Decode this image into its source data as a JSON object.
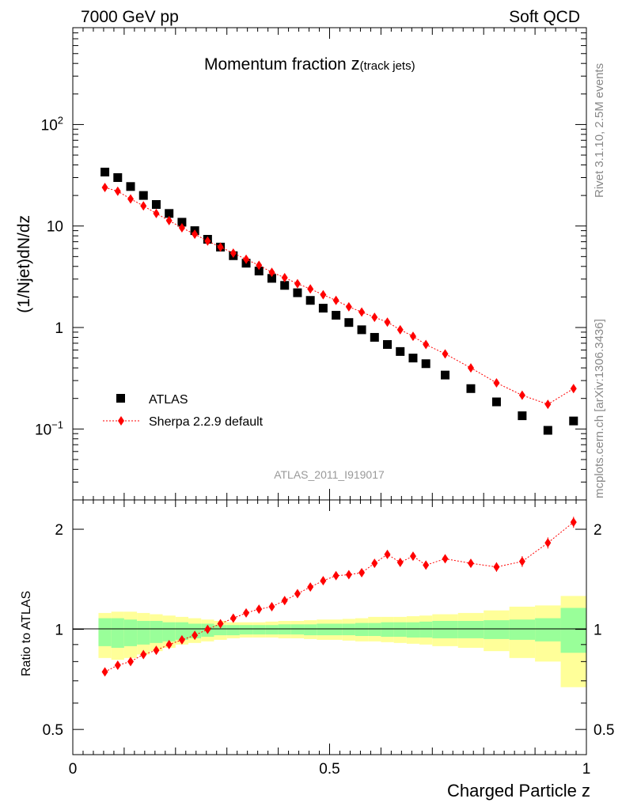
{
  "header": {
    "left": "7000 GeV pp",
    "right": "Soft QCD"
  },
  "side_labels": {
    "top": "Rivet 3.1.10,  2.5M events",
    "bottom": "mcplots.cern.ch [arXiv:1306.3436]"
  },
  "chart_data": [
    {
      "type": "scatter",
      "title_main": "Momentum fraction ",
      "title_z": "z",
      "title_sub": "(track jets)",
      "ylabel": "(1/Njet)dN/dz",
      "yscale": "log",
      "ylim": [
        0.02,
        900
      ],
      "xlim": [
        0,
        1
      ],
      "yticks": [
        {
          "value": 100,
          "base": "10",
          "exp": "2"
        },
        {
          "value": 10,
          "text": "10"
        },
        {
          "value": 1,
          "text": "1"
        },
        {
          "value": 0.1,
          "base": "10",
          "exp": "−1"
        }
      ],
      "watermark": "ATLAS_2011_I919017",
      "legend_position": "bottom-left",
      "series": [
        {
          "name": "ATLAS",
          "marker": "square",
          "color": "#000000",
          "x": [
            0.0625,
            0.0875,
            0.1125,
            0.1375,
            0.1625,
            0.1875,
            0.2125,
            0.2375,
            0.2625,
            0.2875,
            0.3125,
            0.3375,
            0.3625,
            0.3875,
            0.4125,
            0.4375,
            0.4625,
            0.4875,
            0.5125,
            0.5375,
            0.5625,
            0.5875,
            0.6125,
            0.6375,
            0.6625,
            0.6875,
            0.725,
            0.775,
            0.825,
            0.875,
            0.925,
            0.975
          ],
          "y": [
            34,
            30,
            24.5,
            20,
            16.3,
            13.3,
            10.9,
            9.0,
            7.4,
            6.2,
            5.1,
            4.3,
            3.6,
            3.05,
            2.6,
            2.2,
            1.85,
            1.55,
            1.32,
            1.12,
            0.95,
            0.8,
            0.68,
            0.58,
            0.5,
            0.44,
            0.34,
            0.25,
            0.185,
            0.135,
            0.097,
            0.12
          ]
        },
        {
          "name": "Sherpa 2.2.9 default",
          "marker": "diamond",
          "color": "#ff0000",
          "x": [
            0.0625,
            0.0875,
            0.1125,
            0.1375,
            0.1625,
            0.1875,
            0.2125,
            0.2375,
            0.2625,
            0.2875,
            0.3125,
            0.3375,
            0.3625,
            0.3875,
            0.4125,
            0.4375,
            0.4625,
            0.4875,
            0.5125,
            0.5375,
            0.5625,
            0.5875,
            0.6125,
            0.6375,
            0.6625,
            0.6875,
            0.725,
            0.775,
            0.825,
            0.875,
            0.925,
            0.975
          ],
          "y": [
            24,
            22,
            18.5,
            15.8,
            13.3,
            11.3,
            9.6,
            8.3,
            7.1,
            6.2,
            5.4,
            4.7,
            4.1,
            3.5,
            3.1,
            2.7,
            2.4,
            2.1,
            1.85,
            1.6,
            1.42,
            1.26,
            1.13,
            0.95,
            0.82,
            0.68,
            0.55,
            0.4,
            0.285,
            0.215,
            0.175,
            0.25
          ]
        }
      ]
    },
    {
      "type": "scatter",
      "ylabel": "Ratio to ATLAS",
      "xlabel": "Charged Particle z",
      "yscale": "log",
      "ylim": [
        0.42,
        2.45
      ],
      "xlim": [
        0,
        1
      ],
      "yticks": [
        {
          "value": 2,
          "text": "2"
        },
        {
          "value": 1,
          "text": "1"
        },
        {
          "value": 0.5,
          "text": "0.5"
        }
      ],
      "xticks": [
        {
          "value": 0,
          "text": "0"
        },
        {
          "value": 0.5,
          "text": "0.5"
        },
        {
          "value": 1,
          "text": "1"
        }
      ],
      "bands": {
        "inner_color": "#99ff99",
        "outer_color": "#ffff99",
        "edges": [
          0.05,
          0.075,
          0.1,
          0.125,
          0.15,
          0.175,
          0.2,
          0.225,
          0.25,
          0.275,
          0.3,
          0.325,
          0.35,
          0.375,
          0.4,
          0.425,
          0.45,
          0.475,
          0.5,
          0.525,
          0.55,
          0.575,
          0.6,
          0.625,
          0.65,
          0.675,
          0.7,
          0.75,
          0.8,
          0.85,
          0.9,
          0.95,
          1.0
        ],
        "inner": [
          [
            0.89,
            1.08
          ],
          [
            0.88,
            1.08
          ],
          [
            0.89,
            1.07
          ],
          [
            0.9,
            1.06
          ],
          [
            0.91,
            1.06
          ],
          [
            0.92,
            1.05
          ],
          [
            0.93,
            1.05
          ],
          [
            0.94,
            1.04
          ],
          [
            0.95,
            1.04
          ],
          [
            0.96,
            1.03
          ],
          [
            0.96,
            1.03
          ],
          [
            0.965,
            1.03
          ],
          [
            0.965,
            1.03
          ],
          [
            0.965,
            1.03
          ],
          [
            0.965,
            1.035
          ],
          [
            0.965,
            1.035
          ],
          [
            0.96,
            1.035
          ],
          [
            0.96,
            1.04
          ],
          [
            0.96,
            1.04
          ],
          [
            0.96,
            1.04
          ],
          [
            0.955,
            1.045
          ],
          [
            0.955,
            1.045
          ],
          [
            0.95,
            1.05
          ],
          [
            0.95,
            1.05
          ],
          [
            0.945,
            1.05
          ],
          [
            0.945,
            1.055
          ],
          [
            0.94,
            1.06
          ],
          [
            0.94,
            1.06
          ],
          [
            0.935,
            1.065
          ],
          [
            0.93,
            1.07
          ],
          [
            0.92,
            1.08
          ],
          [
            0.85,
            1.16
          ]
        ],
        "outer": [
          [
            0.82,
            1.12
          ],
          [
            0.81,
            1.13
          ],
          [
            0.82,
            1.13
          ],
          [
            0.84,
            1.12
          ],
          [
            0.86,
            1.11
          ],
          [
            0.88,
            1.1
          ],
          [
            0.9,
            1.09
          ],
          [
            0.91,
            1.08
          ],
          [
            0.92,
            1.07
          ],
          [
            0.93,
            1.06
          ],
          [
            0.94,
            1.05
          ],
          [
            0.945,
            1.05
          ],
          [
            0.945,
            1.05
          ],
          [
            0.945,
            1.055
          ],
          [
            0.94,
            1.06
          ],
          [
            0.94,
            1.06
          ],
          [
            0.935,
            1.065
          ],
          [
            0.93,
            1.07
          ],
          [
            0.93,
            1.07
          ],
          [
            0.925,
            1.075
          ],
          [
            0.92,
            1.08
          ],
          [
            0.92,
            1.09
          ],
          [
            0.915,
            1.09
          ],
          [
            0.91,
            1.09
          ],
          [
            0.905,
            1.095
          ],
          [
            0.9,
            1.1
          ],
          [
            0.89,
            1.11
          ],
          [
            0.88,
            1.12
          ],
          [
            0.86,
            1.14
          ],
          [
            0.82,
            1.17
          ],
          [
            0.8,
            1.18
          ],
          [
            0.67,
            1.26
          ]
        ]
      },
      "series": [
        {
          "name": "Sherpa 2.2.9 default",
          "marker": "diamond",
          "color": "#ff0000",
          "x": [
            0.0625,
            0.0875,
            0.1125,
            0.1375,
            0.1625,
            0.1875,
            0.2125,
            0.2375,
            0.2625,
            0.2875,
            0.3125,
            0.3375,
            0.3625,
            0.3875,
            0.4125,
            0.4375,
            0.4625,
            0.4875,
            0.5125,
            0.5375,
            0.5625,
            0.5875,
            0.6125,
            0.6375,
            0.6625,
            0.6875,
            0.725,
            0.775,
            0.825,
            0.875,
            0.925,
            0.975
          ],
          "y": [
            0.745,
            0.78,
            0.8,
            0.84,
            0.865,
            0.9,
            0.93,
            0.96,
            1.0,
            1.04,
            1.08,
            1.12,
            1.15,
            1.17,
            1.22,
            1.28,
            1.34,
            1.4,
            1.45,
            1.46,
            1.48,
            1.58,
            1.68,
            1.59,
            1.66,
            1.56,
            1.63,
            1.58,
            1.54,
            1.6,
            1.82,
            2.1
          ],
          "err": [
            0.015,
            0.012,
            0.012,
            0.012,
            0.012,
            0.012,
            0.012,
            0.012,
            0.012,
            0.012,
            0.012,
            0.012,
            0.012,
            0.015,
            0.015,
            0.015,
            0.018,
            0.018,
            0.02,
            0.02,
            0.025,
            0.03,
            0.04,
            0.04,
            0.045,
            0.045,
            0.045,
            0.045,
            0.05,
            0.06,
            0.07,
            0.08
          ]
        }
      ]
    }
  ]
}
